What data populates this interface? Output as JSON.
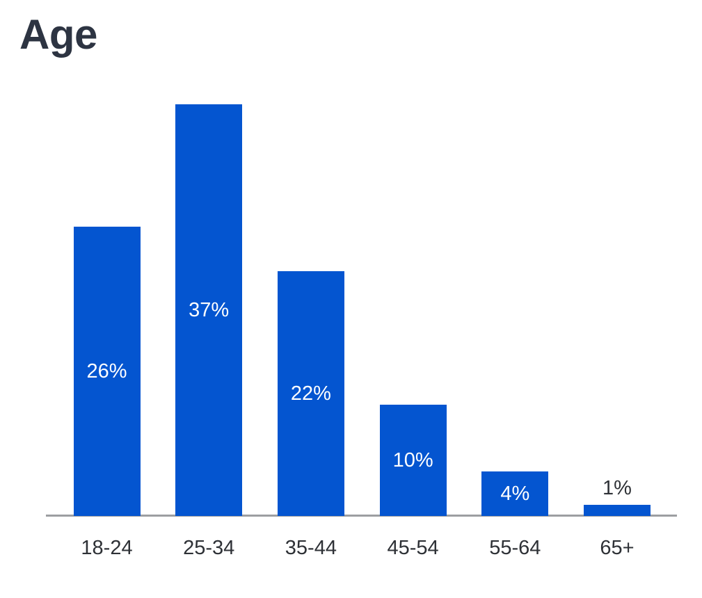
{
  "chart_data": {
    "type": "bar",
    "title": "Age",
    "categories": [
      "18-24",
      "25-34",
      "35-44",
      "45-54",
      "55-64",
      "65+"
    ],
    "values": [
      26,
      37,
      22,
      10,
      4,
      1
    ],
    "value_labels": [
      "26%",
      "37%",
      "22%",
      "10%",
      "4%",
      "1%"
    ],
    "unit": "%",
    "xlabel": "",
    "ylabel": "",
    "ylim": [
      0,
      40
    ],
    "grid": false,
    "legend": false,
    "value_label_placement": "inside-center; above bar when bar too short",
    "colors": {
      "bar": "#0455d0",
      "value_label_inside": "#ffffff",
      "value_label_outside": "#2e3136",
      "category_label": "#2e3136",
      "axis_line": "#9c9ea1",
      "title": "#2d3442",
      "background": "#ffffff"
    }
  }
}
